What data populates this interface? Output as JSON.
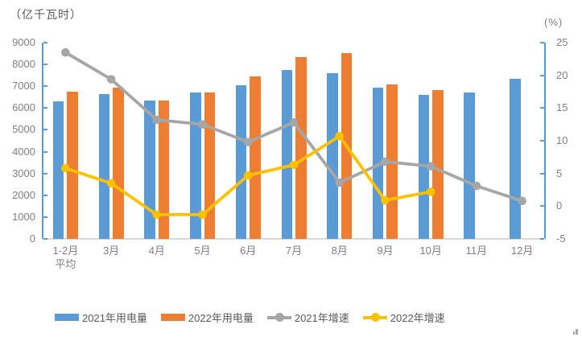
{
  "chart_data": {
    "type": "combo-bar-line",
    "categories": [
      "1-2月平均",
      "3月",
      "4月",
      "5月",
      "6月",
      "7月",
      "8月",
      "9月",
      "10月",
      "11月",
      "12月"
    ],
    "categories_display": [
      [
        "1-2月",
        "平均"
      ],
      [
        "3月"
      ],
      [
        "4月"
      ],
      [
        "5月"
      ],
      [
        "6月"
      ],
      [
        "7月"
      ],
      [
        "8月"
      ],
      [
        "9月"
      ],
      [
        "10月"
      ],
      [
        "11月"
      ],
      [
        "12月"
      ]
    ],
    "series": [
      {
        "name": "2021年用电量",
        "type": "bar",
        "axis": "left",
        "color": "#5B9BD5",
        "values": [
          6294,
          6631,
          6361,
          6724,
          7033,
          7758,
          7607,
          6947,
          6603,
          6718,
          7351
        ]
      },
      {
        "name": "2022年用电量",
        "type": "bar",
        "axis": "left",
        "color": "#ED7D31",
        "values": [
          6734,
          6944,
          6362,
          6716,
          7451,
          8324,
          8520,
          7092,
          6834,
          null,
          null
        ]
      },
      {
        "name": "2021年增速",
        "type": "line",
        "axis": "right",
        "color": "#A6A6A6",
        "values": [
          23.5,
          19.4,
          13.2,
          12.5,
          9.8,
          12.8,
          3.6,
          6.8,
          6.1,
          3.1,
          0.8
        ]
      },
      {
        "name": "2022年增速",
        "type": "line",
        "axis": "right",
        "color": "#FFC000",
        "values": [
          5.8,
          3.5,
          -1.3,
          -1.3,
          4.7,
          6.3,
          10.7,
          0.9,
          2.2,
          null,
          null
        ]
      }
    ],
    "left_axis": {
      "title": "（亿千瓦时）",
      "min": 0,
      "max": 9000,
      "step": 1000,
      "ticks": [
        "0",
        "1000",
        "2000",
        "3000",
        "4000",
        "5000",
        "6000",
        "7000",
        "8000",
        "9000"
      ]
    },
    "right_axis": {
      "title": "(%)",
      "min": -5,
      "max": 25,
      "step": 5,
      "ticks": [
        "-5",
        "0",
        "5",
        "10",
        "15",
        "20",
        "25"
      ]
    },
    "grid": false,
    "legend_position": "bottom"
  }
}
